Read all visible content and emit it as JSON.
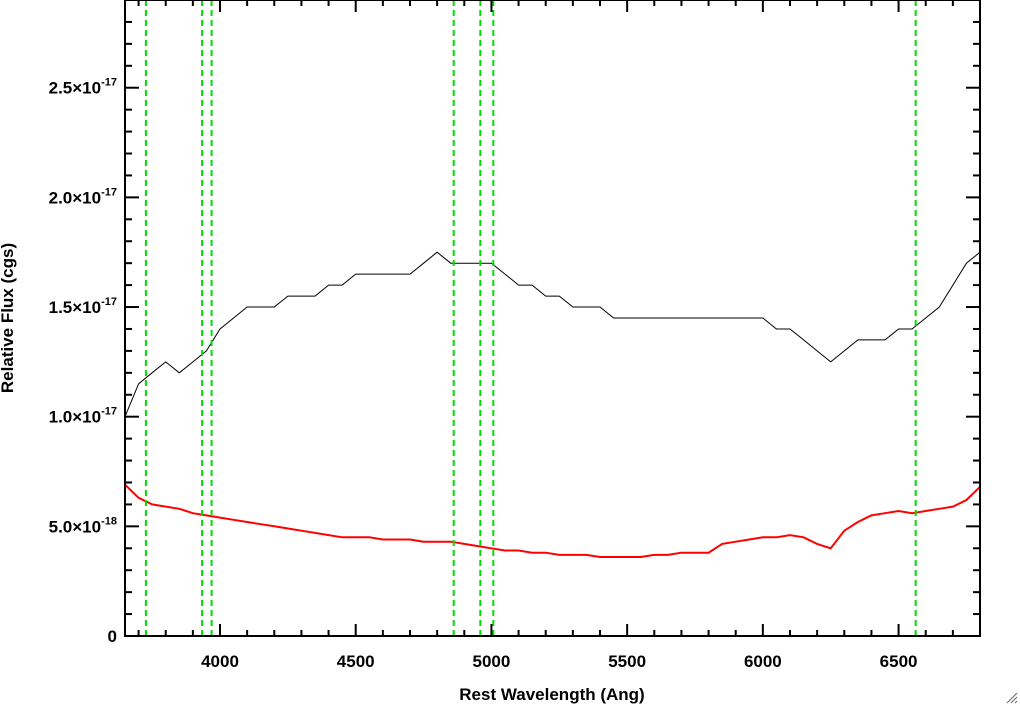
{
  "chart_data": {
    "type": "line",
    "title": "",
    "xlabel": "Rest Wavelength (Ang)",
    "ylabel": "Relative Flux (cgs)",
    "xlim": [
      3650,
      6800
    ],
    "ylim": [
      0,
      2.9e-17
    ],
    "x_ticks": [
      {
        "value": 4000,
        "label": "4000"
      },
      {
        "value": 4500,
        "label": "4500"
      },
      {
        "value": 5000,
        "label": "5000"
      },
      {
        "value": 5500,
        "label": "5500"
      },
      {
        "value": 6000,
        "label": "6000"
      },
      {
        "value": 6500,
        "label": "6500"
      }
    ],
    "y_ticks": [
      {
        "value": 0,
        "mantissa": "0",
        "exponent": ""
      },
      {
        "value": 5e-18,
        "mantissa": "5.0×10",
        "exponent": "-18"
      },
      {
        "value": 1e-17,
        "mantissa": "1.0×10",
        "exponent": "-17"
      },
      {
        "value": 1.5e-17,
        "mantissa": "1.5×10",
        "exponent": "-17"
      },
      {
        "value": 2e-17,
        "mantissa": "2.0×10",
        "exponent": "-17"
      },
      {
        "value": 2.5e-17,
        "mantissa": "2.5×10",
        "exponent": "-17"
      }
    ],
    "grid": false,
    "series": [
      {
        "color": "#000000",
        "x": [
          3650,
          3700,
          3750,
          3800,
          3850,
          3900,
          3950,
          4000,
          4050,
          4100,
          4150,
          4200,
          4250,
          4300,
          4350,
          4400,
          4450,
          4500,
          4550,
          4600,
          4650,
          4700,
          4750,
          4800,
          4850,
          4900,
          4950,
          5000,
          5050,
          5100,
          5150,
          5200,
          5250,
          5300,
          5350,
          5400,
          5450,
          5500,
          5550,
          5600,
          5650,
          5700,
          5750,
          5800,
          5850,
          5900,
          5950,
          6000,
          6050,
          6100,
          6150,
          6200,
          6250,
          6300,
          6350,
          6400,
          6450,
          6500,
          6550,
          6600,
          6650,
          6700,
          6750,
          6800
        ],
        "y": [
          1e-17,
          1.15e-17,
          1.2e-17,
          1.25e-17,
          1.2e-17,
          1.25e-17,
          1.3e-17,
          1.4e-17,
          1.45e-17,
          1.5e-17,
          1.5e-17,
          1.5e-17,
          1.55e-17,
          1.55e-17,
          1.55e-17,
          1.6e-17,
          1.6e-17,
          1.65e-17,
          1.65e-17,
          1.65e-17,
          1.65e-17,
          1.65e-17,
          1.7e-17,
          1.75e-17,
          1.7e-17,
          1.7e-17,
          1.7e-17,
          1.7e-17,
          1.65e-17,
          1.6e-17,
          1.6e-17,
          1.55e-17,
          1.55e-17,
          1.5e-17,
          1.5e-17,
          1.5e-17,
          1.45e-17,
          1.45e-17,
          1.45e-17,
          1.45e-17,
          1.45e-17,
          1.45e-17,
          1.45e-17,
          1.45e-17,
          1.45e-17,
          1.45e-17,
          1.45e-17,
          1.45e-17,
          1.4e-17,
          1.4e-17,
          1.35e-17,
          1.3e-17,
          1.25e-17,
          1.3e-17,
          1.35e-17,
          1.35e-17,
          1.35e-17,
          1.4e-17,
          1.4e-17,
          1.45e-17,
          1.5e-17,
          1.6e-17,
          1.7e-17,
          1.75e-17
        ]
      },
      {
        "color": "#ff0000",
        "x": [
          3650,
          3700,
          3750,
          3800,
          3850,
          3900,
          3950,
          4000,
          4050,
          4100,
          4150,
          4200,
          4250,
          4300,
          4350,
          4400,
          4450,
          4500,
          4550,
          4600,
          4650,
          4700,
          4750,
          4800,
          4850,
          4900,
          4950,
          5000,
          5050,
          5100,
          5150,
          5200,
          5250,
          5300,
          5350,
          5400,
          5450,
          5500,
          5550,
          5600,
          5650,
          5700,
          5750,
          5800,
          5850,
          5900,
          5950,
          6000,
          6050,
          6100,
          6150,
          6200,
          6250,
          6300,
          6350,
          6400,
          6450,
          6500,
          6550,
          6600,
          6650,
          6700,
          6750,
          6800
        ],
        "y": [
          6.9e-18,
          6.3e-18,
          6e-18,
          5.9e-18,
          5.8e-18,
          5.6e-18,
          5.5e-18,
          5.4e-18,
          5.3e-18,
          5.2e-18,
          5.1e-18,
          5e-18,
          4.9e-18,
          4.8e-18,
          4.7e-18,
          4.6e-18,
          4.5e-18,
          4.5e-18,
          4.5e-18,
          4.4e-18,
          4.4e-18,
          4.4e-18,
          4.3e-18,
          4.3e-18,
          4.3e-18,
          4.2e-18,
          4.1e-18,
          4e-18,
          3.9e-18,
          3.9e-18,
          3.8e-18,
          3.8e-18,
          3.7e-18,
          3.7e-18,
          3.7e-18,
          3.6e-18,
          3.6e-18,
          3.6e-18,
          3.6e-18,
          3.7e-18,
          3.7e-18,
          3.8e-18,
          3.8e-18,
          3.8e-18,
          4.2e-18,
          4.3e-18,
          4.4e-18,
          4.5e-18,
          4.5e-18,
          4.6e-18,
          4.5e-18,
          4.2e-18,
          4e-18,
          4.8e-18,
          5.2e-18,
          5.5e-18,
          5.6e-18,
          5.7e-18,
          5.6e-18,
          5.7e-18,
          5.8e-18,
          5.9e-18,
          6.2e-18,
          6.8e-18
        ]
      }
    ],
    "vertical_markers": {
      "color": "#00dd00",
      "style": "dashed",
      "x": [
        3727,
        3934,
        3969,
        4861,
        4959,
        5007,
        6563
      ]
    }
  },
  "colors": {
    "background": "#ffffff",
    "axes": "#000000",
    "observed": "#000000",
    "model": "#ff0000",
    "markers": "#00dd00"
  }
}
